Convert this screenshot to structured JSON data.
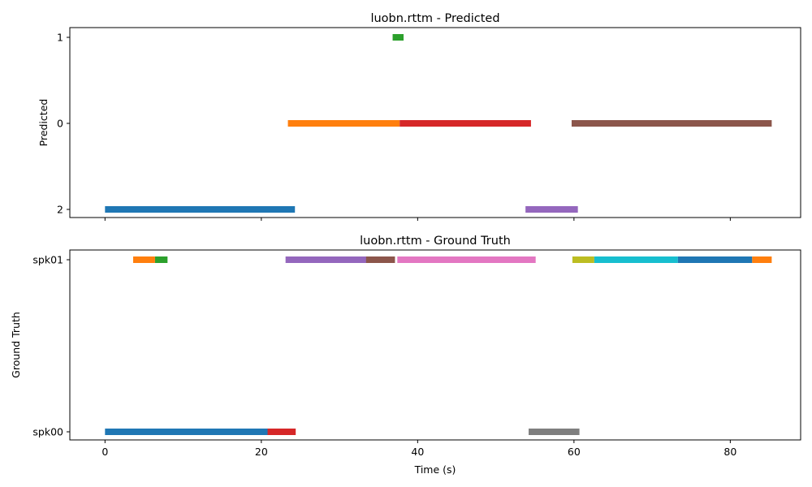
{
  "chart_data": [
    {
      "type": "broken_barh",
      "title": "luobn.rttm - Predicted",
      "ylabel": "Predicted",
      "xlabel": "",
      "xlim": [
        -4.5,
        89
      ],
      "x_ticks": [
        0,
        20,
        40,
        60,
        80
      ],
      "show_x_tick_labels": false,
      "y_categories": [
        "1",
        "0",
        "2"
      ],
      "segments": [
        {
          "label": "2",
          "start": 0.0,
          "end": 24.3,
          "color": "#1f77b4"
        },
        {
          "label": "0",
          "start": 23.4,
          "end": 37.7,
          "color": "#ff7f0e"
        },
        {
          "label": "1",
          "start": 36.8,
          "end": 38.2,
          "color": "#2ca02c"
        },
        {
          "label": "0",
          "start": 37.7,
          "end": 54.5,
          "color": "#d62728"
        },
        {
          "label": "2",
          "start": 53.8,
          "end": 60.5,
          "color": "#9467bd"
        },
        {
          "label": "0",
          "start": 59.7,
          "end": 85.3,
          "color": "#8c564b"
        }
      ]
    },
    {
      "type": "broken_barh",
      "title": "luobn.rttm - Ground Truth",
      "ylabel": "Ground Truth",
      "xlabel": "Time (s)",
      "xlim": [
        -4.5,
        89
      ],
      "x_ticks": [
        0,
        20,
        40,
        60,
        80
      ],
      "show_x_tick_labels": true,
      "y_categories": [
        "spk01",
        "spk00"
      ],
      "segments": [
        {
          "label": "spk00",
          "start": 0.0,
          "end": 21.0,
          "color": "#1f77b4"
        },
        {
          "label": "spk01",
          "start": 3.6,
          "end": 6.4,
          "color": "#ff7f0e"
        },
        {
          "label": "spk01",
          "start": 6.4,
          "end": 8.0,
          "color": "#2ca02c"
        },
        {
          "label": "spk00",
          "start": 20.8,
          "end": 24.4,
          "color": "#d62728"
        },
        {
          "label": "spk01",
          "start": 23.1,
          "end": 33.6,
          "color": "#9467bd"
        },
        {
          "label": "spk01",
          "start": 33.4,
          "end": 37.1,
          "color": "#8c564b"
        },
        {
          "label": "spk01",
          "start": 37.4,
          "end": 55.1,
          "color": "#e377c2"
        },
        {
          "label": "spk00",
          "start": 54.2,
          "end": 60.7,
          "color": "#7f7f7f"
        },
        {
          "label": "spk01",
          "start": 59.8,
          "end": 62.6,
          "color": "#bcbd22"
        },
        {
          "label": "spk01",
          "start": 62.6,
          "end": 73.3,
          "color": "#17becf"
        },
        {
          "label": "spk01",
          "start": 73.3,
          "end": 82.8,
          "color": "#1f77b4"
        },
        {
          "label": "spk01",
          "start": 82.8,
          "end": 85.3,
          "color": "#ff7f0e"
        }
      ]
    }
  ]
}
